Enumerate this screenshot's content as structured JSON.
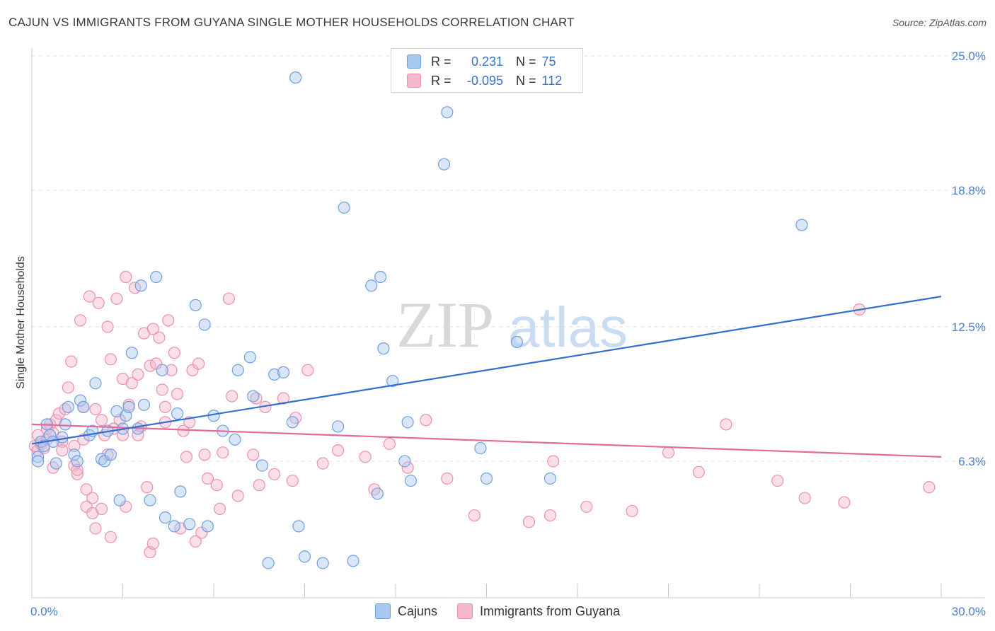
{
  "header": {
    "title": "CAJUN VS IMMIGRANTS FROM GUYANA SINGLE MOTHER HOUSEHOLDS CORRELATION CHART",
    "source": "Source: ZipAtlas.com"
  },
  "watermark": {
    "zip": "ZIP",
    "atlas": "atlas"
  },
  "legend": {
    "rows": [
      {
        "r_label": "R =",
        "r_value": "0.231",
        "n_label": "N =",
        "n_value": "75"
      },
      {
        "r_label": "R =",
        "r_value": "-0.095",
        "n_label": "N =",
        "n_value": "112"
      }
    ]
  },
  "bottom_legend": {
    "series1": "Cajuns",
    "series2": "Immigrants from Guyana"
  },
  "colors": {
    "cajuns_fill": "#a8c8f0",
    "cajuns_stroke": "#6f9fe0",
    "cajuns_line": "#2f6fd0",
    "guyana_fill": "#f5b8cc",
    "guyana_stroke": "#ec8fae",
    "guyana_line": "#e26b98",
    "tick_label": "#4a7fd0"
  },
  "chart_data": {
    "type": "scatter",
    "title": "CAJUN VS IMMIGRANTS FROM GUYANA SINGLE MOTHER HOUSEHOLDS CORRELATION CHART",
    "xlabel": "",
    "ylabel": "Single Mother Households",
    "xlim": [
      0,
      30
    ],
    "ylim": [
      0,
      25
    ],
    "x_tick_labels": [
      "0.0%",
      "30.0%"
    ],
    "y_ticks": [
      6.3,
      12.5,
      18.8,
      25.0
    ],
    "y_tick_labels": [
      "6.3%",
      "12.5%",
      "18.8%",
      "25.0%"
    ],
    "grid": true,
    "series": [
      {
        "name": "Cajuns",
        "trend": {
          "x": [
            0,
            30
          ],
          "y": [
            7.1,
            13.9
          ]
        },
        "points": [
          [
            0.2,
            6.5
          ],
          [
            0.2,
            6.3
          ],
          [
            0.3,
            7.2
          ],
          [
            0.4,
            7.0
          ],
          [
            0.5,
            8.0
          ],
          [
            0.6,
            7.5
          ],
          [
            0.7,
            7.2
          ],
          [
            0.8,
            6.2
          ],
          [
            1.0,
            7.4
          ],
          [
            1.1,
            8.0
          ],
          [
            1.2,
            8.8
          ],
          [
            1.4,
            6.6
          ],
          [
            1.5,
            6.3
          ],
          [
            1.6,
            9.1
          ],
          [
            1.7,
            8.8
          ],
          [
            1.9,
            7.5
          ],
          [
            2.0,
            7.7
          ],
          [
            2.1,
            9.9
          ],
          [
            2.3,
            6.4
          ],
          [
            2.4,
            6.3
          ],
          [
            2.5,
            7.7
          ],
          [
            2.6,
            6.6
          ],
          [
            2.8,
            8.6
          ],
          [
            2.9,
            4.5
          ],
          [
            3.0,
            7.8
          ],
          [
            3.1,
            8.4
          ],
          [
            3.2,
            8.8
          ],
          [
            3.3,
            11.3
          ],
          [
            3.5,
            7.8
          ],
          [
            3.6,
            14.4
          ],
          [
            3.7,
            8.9
          ],
          [
            3.9,
            4.5
          ],
          [
            4.1,
            14.8
          ],
          [
            4.3,
            10.5
          ],
          [
            4.4,
            3.7
          ],
          [
            4.7,
            3.3
          ],
          [
            4.8,
            8.5
          ],
          [
            4.9,
            4.9
          ],
          [
            5.2,
            3.4
          ],
          [
            5.4,
            13.5
          ],
          [
            5.7,
            12.6
          ],
          [
            5.8,
            3.3
          ],
          [
            6.0,
            8.4
          ],
          [
            6.3,
            7.7
          ],
          [
            6.7,
            7.3
          ],
          [
            6.8,
            10.5
          ],
          [
            7.2,
            11.1
          ],
          [
            7.3,
            9.3
          ],
          [
            7.6,
            6.1
          ],
          [
            7.8,
            1.6
          ],
          [
            8.0,
            10.3
          ],
          [
            8.3,
            10.4
          ],
          [
            8.6,
            8.1
          ],
          [
            8.8,
            3.3
          ],
          [
            8.7,
            24.0
          ],
          [
            9.0,
            1.9
          ],
          [
            9.6,
            1.6
          ],
          [
            10.1,
            7.9
          ],
          [
            10.3,
            18.0
          ],
          [
            10.6,
            1.7
          ],
          [
            11.2,
            14.4
          ],
          [
            11.4,
            4.8
          ],
          [
            11.5,
            14.8
          ],
          [
            11.6,
            11.5
          ],
          [
            11.9,
            10.0
          ],
          [
            12.3,
            6.3
          ],
          [
            12.4,
            8.1
          ],
          [
            12.5,
            5.4
          ],
          [
            13.6,
            20.0
          ],
          [
            13.7,
            22.4
          ],
          [
            14.8,
            6.9
          ],
          [
            15.0,
            5.5
          ],
          [
            16.0,
            11.8
          ],
          [
            17.1,
            5.5
          ],
          [
            25.4,
            17.2
          ]
        ]
      },
      {
        "name": "Immigrants from Guyana",
        "trend": {
          "x": [
            0,
            30
          ],
          "y": [
            8.0,
            6.5
          ]
        },
        "points": [
          [
            0.1,
            7.0
          ],
          [
            0.2,
            6.8
          ],
          [
            0.2,
            7.5
          ],
          [
            0.3,
            7.1
          ],
          [
            0.4,
            6.9
          ],
          [
            0.5,
            7.3
          ],
          [
            0.5,
            7.8
          ],
          [
            0.6,
            8.0
          ],
          [
            0.7,
            7.6
          ],
          [
            0.7,
            6.0
          ],
          [
            0.8,
            8.2
          ],
          [
            0.9,
            8.5
          ],
          [
            1.0,
            7.2
          ],
          [
            1.0,
            6.8
          ],
          [
            1.1,
            8.7
          ],
          [
            1.2,
            9.7
          ],
          [
            1.3,
            10.9
          ],
          [
            1.4,
            7.0
          ],
          [
            1.4,
            6.1
          ],
          [
            1.5,
            5.7
          ],
          [
            1.5,
            5.9
          ],
          [
            1.6,
            12.8
          ],
          [
            1.7,
            8.8
          ],
          [
            1.7,
            7.3
          ],
          [
            1.8,
            5.0
          ],
          [
            1.8,
            4.2
          ],
          [
            1.9,
            13.9
          ],
          [
            2.0,
            4.6
          ],
          [
            2.0,
            3.9
          ],
          [
            2.1,
            3.2
          ],
          [
            2.1,
            8.7
          ],
          [
            2.2,
            13.6
          ],
          [
            2.3,
            8.2
          ],
          [
            2.3,
            4.1
          ],
          [
            2.4,
            7.5
          ],
          [
            2.5,
            6.6
          ],
          [
            2.5,
            12.5
          ],
          [
            2.6,
            11.0
          ],
          [
            2.6,
            2.8
          ],
          [
            2.7,
            7.8
          ],
          [
            2.8,
            13.8
          ],
          [
            2.9,
            8.2
          ],
          [
            3.0,
            10.1
          ],
          [
            3.0,
            7.5
          ],
          [
            3.1,
            4.2
          ],
          [
            3.1,
            14.8
          ],
          [
            3.2,
            8.9
          ],
          [
            3.3,
            9.9
          ],
          [
            3.4,
            14.3
          ],
          [
            3.5,
            10.3
          ],
          [
            3.5,
            7.5
          ],
          [
            3.6,
            7.9
          ],
          [
            3.7,
            12.2
          ],
          [
            3.8,
            5.1
          ],
          [
            3.9,
            10.7
          ],
          [
            3.9,
            2.1
          ],
          [
            4.0,
            12.4
          ],
          [
            4.0,
            2.5
          ],
          [
            4.1,
            10.8
          ],
          [
            4.2,
            12.0
          ],
          [
            4.3,
            9.6
          ],
          [
            4.4,
            8.1
          ],
          [
            4.4,
            8.8
          ],
          [
            4.5,
            12.8
          ],
          [
            4.6,
            10.5
          ],
          [
            4.7,
            11.3
          ],
          [
            4.8,
            9.4
          ],
          [
            4.9,
            3.2
          ],
          [
            5.0,
            7.7
          ],
          [
            5.1,
            6.5
          ],
          [
            5.2,
            8.1
          ],
          [
            5.3,
            10.5
          ],
          [
            5.4,
            2.6
          ],
          [
            5.5,
            10.8
          ],
          [
            5.6,
            3.0
          ],
          [
            5.7,
            6.6
          ],
          [
            5.8,
            5.5
          ],
          [
            6.1,
            5.2
          ],
          [
            6.2,
            4.1
          ],
          [
            6.3,
            6.7
          ],
          [
            6.5,
            13.8
          ],
          [
            6.6,
            9.3
          ],
          [
            6.8,
            4.7
          ],
          [
            7.3,
            6.6
          ],
          [
            7.4,
            9.2
          ],
          [
            7.5,
            5.2
          ],
          [
            7.7,
            8.8
          ],
          [
            8.0,
            5.7
          ],
          [
            8.3,
            9.2
          ],
          [
            8.6,
            5.4
          ],
          [
            8.7,
            8.3
          ],
          [
            9.1,
            10.5
          ],
          [
            9.6,
            6.2
          ],
          [
            10.1,
            6.8
          ],
          [
            11.0,
            6.5
          ],
          [
            11.3,
            5.0
          ],
          [
            11.8,
            7.1
          ],
          [
            12.4,
            6.0
          ],
          [
            13.0,
            8.2
          ],
          [
            13.7,
            5.5
          ],
          [
            14.6,
            3.8
          ],
          [
            16.4,
            3.5
          ],
          [
            17.2,
            6.3
          ],
          [
            17.1,
            3.8
          ],
          [
            18.3,
            4.2
          ],
          [
            19.8,
            4.0
          ],
          [
            21.0,
            6.7
          ],
          [
            22.0,
            5.8
          ],
          [
            22.9,
            8.0
          ],
          [
            24.6,
            5.4
          ],
          [
            25.5,
            4.6
          ],
          [
            27.3,
            13.3
          ],
          [
            26.8,
            4.4
          ],
          [
            29.6,
            5.1
          ]
        ]
      }
    ]
  }
}
